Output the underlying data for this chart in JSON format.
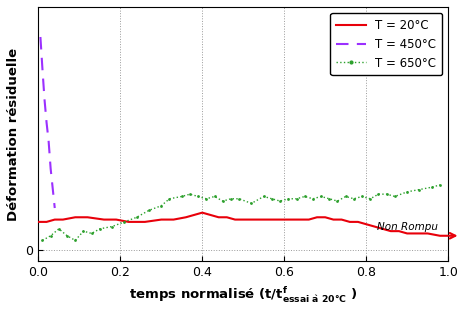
{
  "title": "",
  "ylabel": "Déformation résiduelle",
  "xlim": [
    0,
    1.0
  ],
  "ylim": [
    -0.05,
    1.05
  ],
  "xticks": [
    0,
    0.2,
    0.4,
    0.6,
    0.8,
    1.0
  ],
  "legend_labels": [
    "T = 20°C",
    "T = 450°C",
    "T = 650°C"
  ],
  "legend_colors": [
    "#e8000a",
    "#9b30ff",
    "#2ca02c"
  ],
  "non_rompu_label": "Non Rompu",
  "red_x": [
    0.0,
    0.02,
    0.04,
    0.06,
    0.09,
    0.12,
    0.16,
    0.19,
    0.22,
    0.26,
    0.3,
    0.33,
    0.36,
    0.38,
    0.4,
    0.42,
    0.44,
    0.46,
    0.48,
    0.5,
    0.52,
    0.54,
    0.56,
    0.58,
    0.6,
    0.62,
    0.64,
    0.66,
    0.68,
    0.7,
    0.72,
    0.74,
    0.76,
    0.78,
    0.8,
    0.82,
    0.84,
    0.86,
    0.88,
    0.9,
    0.92,
    0.95,
    0.98,
    1.0
  ],
  "red_y": [
    0.12,
    0.12,
    0.13,
    0.13,
    0.14,
    0.14,
    0.13,
    0.13,
    0.12,
    0.12,
    0.13,
    0.13,
    0.14,
    0.15,
    0.16,
    0.15,
    0.14,
    0.14,
    0.13,
    0.13,
    0.13,
    0.13,
    0.13,
    0.13,
    0.13,
    0.13,
    0.13,
    0.13,
    0.14,
    0.14,
    0.13,
    0.13,
    0.12,
    0.12,
    0.11,
    0.1,
    0.09,
    0.08,
    0.08,
    0.07,
    0.07,
    0.07,
    0.06,
    0.06
  ],
  "purple_x": [
    0.005,
    0.01,
    0.015,
    0.02,
    0.025,
    0.03,
    0.04
  ],
  "purple_y": [
    0.92,
    0.78,
    0.65,
    0.55,
    0.47,
    0.35,
    0.18
  ],
  "green_x": [
    0.01,
    0.03,
    0.05,
    0.07,
    0.09,
    0.11,
    0.13,
    0.15,
    0.18,
    0.21,
    0.24,
    0.27,
    0.3,
    0.32,
    0.35,
    0.37,
    0.39,
    0.41,
    0.43,
    0.45,
    0.47,
    0.49,
    0.52,
    0.55,
    0.57,
    0.59,
    0.61,
    0.63,
    0.65,
    0.67,
    0.69,
    0.71,
    0.73,
    0.75,
    0.77,
    0.79,
    0.81,
    0.83,
    0.85,
    0.87,
    0.9,
    0.93,
    0.96,
    0.98
  ],
  "green_y": [
    0.04,
    0.06,
    0.09,
    0.06,
    0.04,
    0.08,
    0.07,
    0.09,
    0.1,
    0.12,
    0.14,
    0.17,
    0.19,
    0.22,
    0.23,
    0.24,
    0.23,
    0.22,
    0.23,
    0.21,
    0.22,
    0.22,
    0.2,
    0.23,
    0.22,
    0.21,
    0.22,
    0.22,
    0.23,
    0.22,
    0.23,
    0.22,
    0.21,
    0.23,
    0.22,
    0.23,
    0.22,
    0.24,
    0.24,
    0.23,
    0.25,
    0.26,
    0.27,
    0.28
  ]
}
